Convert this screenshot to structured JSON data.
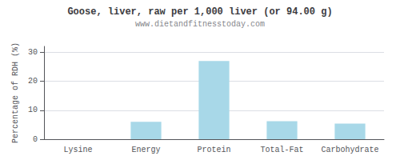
{
  "chart_data": {
    "type": "bar",
    "title": "Goose, liver, raw per 1,000 liver (or 94.00 g)",
    "subtitle": "www.dietandfitnesstoday.com",
    "categories": [
      "Lysine",
      "Energy",
      "Protein",
      "Total-Fat",
      "Carbohydrate"
    ],
    "values": [
      0.0,
      6.0,
      27.0,
      6.2,
      5.4
    ],
    "color": "#a8d8e8",
    "ylabel": "Percentage of RDH (%)",
    "ylim": [
      0,
      32
    ],
    "yticks": [
      0,
      10,
      20,
      30
    ],
    "grid": true
  }
}
